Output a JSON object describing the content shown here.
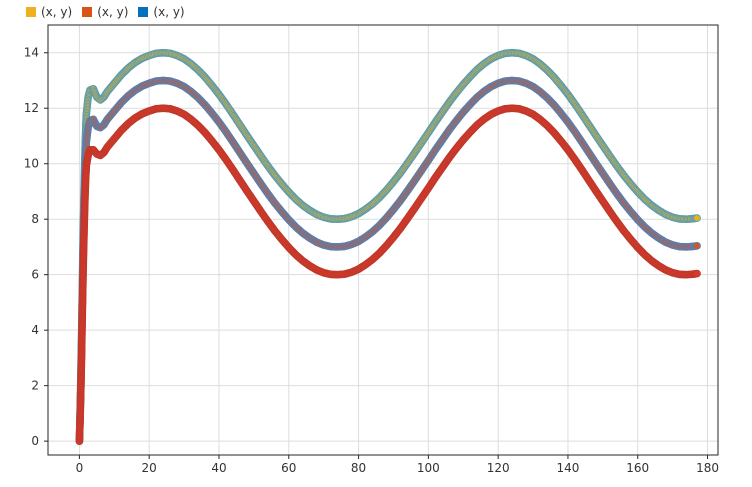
{
  "chart_data": {
    "type": "scatter",
    "xlim": [
      -9,
      183
    ],
    "ylim": [
      -0.5,
      15
    ],
    "xticks": [
      0,
      20,
      40,
      60,
      80,
      100,
      120,
      140,
      160,
      180
    ],
    "yticks": [
      0,
      2,
      4,
      6,
      8,
      10,
      12,
      14
    ],
    "grid": true,
    "legend_position": "top-left",
    "legend": [
      {
        "label": "(x, y)",
        "color": "#EDB120"
      },
      {
        "label": "(x, y)",
        "color": "#D95319"
      },
      {
        "label": "(x, y)",
        "color": "#0072BD"
      }
    ],
    "series": [
      {
        "color": "#EDB120",
        "edge": "#5a9db0",
        "description": "y = 11 + 3*sin(2*pi*(x-0)/100) after rise from origin",
        "points": [
          [
            0.0,
            0.0
          ],
          [
            0.2,
            1.0
          ],
          [
            0.4,
            2.2
          ],
          [
            0.6,
            3.6
          ],
          [
            0.8,
            5.2
          ],
          [
            1.0,
            6.8
          ],
          [
            1.2,
            8.2
          ],
          [
            1.4,
            9.4
          ],
          [
            1.6,
            10.4
          ],
          [
            1.8,
            11.2
          ],
          [
            2.0,
            11.8
          ],
          [
            2.5,
            12.4
          ],
          [
            3.0,
            12.65
          ],
          [
            4.0,
            12.7
          ],
          [
            5.0,
            12.4
          ],
          [
            6.0,
            12.3
          ],
          [
            7.0,
            12.4
          ],
          [
            8.0,
            12.6
          ],
          [
            10,
            12.9
          ],
          [
            12,
            13.2
          ],
          [
            14,
            13.45
          ],
          [
            16,
            13.65
          ],
          [
            18,
            13.8
          ],
          [
            20,
            13.9
          ],
          [
            22,
            13.98
          ],
          [
            24,
            14.0
          ],
          [
            26,
            13.98
          ],
          [
            28,
            13.9
          ],
          [
            30,
            13.78
          ],
          [
            32,
            13.6
          ],
          [
            34,
            13.38
          ],
          [
            36,
            13.12
          ],
          [
            38,
            12.82
          ],
          [
            40,
            12.5
          ],
          [
            42,
            12.15
          ],
          [
            44,
            11.78
          ],
          [
            46,
            11.4
          ],
          [
            48,
            11.02
          ],
          [
            50,
            10.65
          ],
          [
            52,
            10.28
          ],
          [
            54,
            9.92
          ],
          [
            56,
            9.58
          ],
          [
            58,
            9.27
          ],
          [
            60,
            8.98
          ],
          [
            62,
            8.72
          ],
          [
            64,
            8.5
          ],
          [
            66,
            8.32
          ],
          [
            68,
            8.17
          ],
          [
            70,
            8.07
          ],
          [
            72,
            8.01
          ],
          [
            74,
            8.0
          ],
          [
            76,
            8.02
          ],
          [
            78,
            8.09
          ],
          [
            80,
            8.2
          ],
          [
            82,
            8.36
          ],
          [
            84,
            8.55
          ],
          [
            86,
            8.78
          ],
          [
            88,
            9.05
          ],
          [
            90,
            9.35
          ],
          [
            92,
            9.67
          ],
          [
            94,
            10.02
          ],
          [
            96,
            10.38
          ],
          [
            98,
            10.75
          ],
          [
            100,
            11.12
          ],
          [
            102,
            11.5
          ],
          [
            104,
            11.86
          ],
          [
            106,
            12.22
          ],
          [
            108,
            12.55
          ],
          [
            110,
            12.86
          ],
          [
            112,
            13.14
          ],
          [
            114,
            13.4
          ],
          [
            116,
            13.61
          ],
          [
            118,
            13.78
          ],
          [
            120,
            13.9
          ],
          [
            122,
            13.98
          ],
          [
            124,
            14.0
          ],
          [
            126,
            13.98
          ],
          [
            128,
            13.9
          ],
          [
            130,
            13.78
          ],
          [
            132,
            13.6
          ],
          [
            134,
            13.38
          ],
          [
            136,
            13.12
          ],
          [
            138,
            12.82
          ],
          [
            140,
            12.5
          ],
          [
            142,
            12.15
          ],
          [
            144,
            11.78
          ],
          [
            146,
            11.4
          ],
          [
            148,
            11.02
          ],
          [
            150,
            10.65
          ],
          [
            152,
            10.28
          ],
          [
            154,
            9.92
          ],
          [
            156,
            9.58
          ],
          [
            158,
            9.27
          ],
          [
            160,
            8.98
          ],
          [
            162,
            8.72
          ],
          [
            164,
            8.5
          ],
          [
            166,
            8.32
          ],
          [
            168,
            8.17
          ],
          [
            170,
            8.07
          ],
          [
            172,
            8.01
          ],
          [
            174,
            8.0
          ],
          [
            176,
            8.02
          ],
          [
            177,
            8.04
          ]
        ]
      },
      {
        "color": "#D95319",
        "edge": "#5a7fb0",
        "description": "y = 10 + 3*sin(...)",
        "points": [
          [
            0.0,
            0.0
          ],
          [
            0.2,
            0.9
          ],
          [
            0.4,
            2.0
          ],
          [
            0.6,
            3.3
          ],
          [
            0.8,
            4.8
          ],
          [
            1.0,
            6.2
          ],
          [
            1.2,
            7.6
          ],
          [
            1.4,
            8.7
          ],
          [
            1.6,
            9.6
          ],
          [
            1.8,
            10.3
          ],
          [
            2.0,
            10.8
          ],
          [
            2.5,
            11.3
          ],
          [
            3.0,
            11.55
          ],
          [
            4.0,
            11.6
          ],
          [
            5.0,
            11.35
          ],
          [
            6.0,
            11.3
          ],
          [
            7.0,
            11.4
          ],
          [
            8.0,
            11.6
          ],
          [
            10,
            11.9
          ],
          [
            12,
            12.2
          ],
          [
            14,
            12.45
          ],
          [
            16,
            12.65
          ],
          [
            18,
            12.8
          ],
          [
            20,
            12.9
          ],
          [
            22,
            12.98
          ],
          [
            24,
            13.0
          ],
          [
            26,
            12.98
          ],
          [
            28,
            12.9
          ],
          [
            30,
            12.78
          ],
          [
            32,
            12.6
          ],
          [
            34,
            12.38
          ],
          [
            36,
            12.12
          ],
          [
            38,
            11.82
          ],
          [
            40,
            11.5
          ],
          [
            42,
            11.15
          ],
          [
            44,
            10.78
          ],
          [
            46,
            10.4
          ],
          [
            48,
            10.02
          ],
          [
            50,
            9.65
          ],
          [
            52,
            9.28
          ],
          [
            54,
            8.92
          ],
          [
            56,
            8.58
          ],
          [
            58,
            8.27
          ],
          [
            60,
            7.98
          ],
          [
            62,
            7.72
          ],
          [
            64,
            7.5
          ],
          [
            66,
            7.32
          ],
          [
            68,
            7.17
          ],
          [
            70,
            7.07
          ],
          [
            72,
            7.01
          ],
          [
            74,
            7.0
          ],
          [
            76,
            7.02
          ],
          [
            78,
            7.09
          ],
          [
            80,
            7.2
          ],
          [
            82,
            7.36
          ],
          [
            84,
            7.55
          ],
          [
            86,
            7.78
          ],
          [
            88,
            8.05
          ],
          [
            90,
            8.35
          ],
          [
            92,
            8.67
          ],
          [
            94,
            9.02
          ],
          [
            96,
            9.38
          ],
          [
            98,
            9.75
          ],
          [
            100,
            10.12
          ],
          [
            102,
            10.5
          ],
          [
            104,
            10.86
          ],
          [
            106,
            11.22
          ],
          [
            108,
            11.55
          ],
          [
            110,
            11.86
          ],
          [
            112,
            12.14
          ],
          [
            114,
            12.4
          ],
          [
            116,
            12.61
          ],
          [
            118,
            12.78
          ],
          [
            120,
            12.9
          ],
          [
            122,
            12.98
          ],
          [
            124,
            13.0
          ],
          [
            126,
            12.98
          ],
          [
            128,
            12.9
          ],
          [
            130,
            12.78
          ],
          [
            132,
            12.6
          ],
          [
            134,
            12.38
          ],
          [
            136,
            12.12
          ],
          [
            138,
            11.82
          ],
          [
            140,
            11.5
          ],
          [
            142,
            11.15
          ],
          [
            144,
            10.78
          ],
          [
            146,
            10.4
          ],
          [
            148,
            10.02
          ],
          [
            150,
            9.65
          ],
          [
            152,
            9.28
          ],
          [
            154,
            8.92
          ],
          [
            156,
            8.58
          ],
          [
            158,
            8.27
          ],
          [
            160,
            7.98
          ],
          [
            162,
            7.72
          ],
          [
            164,
            7.5
          ],
          [
            166,
            7.32
          ],
          [
            168,
            7.17
          ],
          [
            170,
            7.07
          ],
          [
            172,
            7.01
          ],
          [
            174,
            7.0
          ],
          [
            176,
            7.02
          ],
          [
            177,
            7.04
          ]
        ]
      },
      {
        "color": "#D93A2B",
        "edge": "#c0392b",
        "description": "y = 9 + 3*sin(...)",
        "points": [
          [
            0.0,
            0.0
          ],
          [
            0.2,
            0.8
          ],
          [
            0.4,
            1.8
          ],
          [
            0.6,
            3.0
          ],
          [
            0.8,
            4.4
          ],
          [
            1.0,
            5.7
          ],
          [
            1.2,
            6.9
          ],
          [
            1.4,
            7.9
          ],
          [
            1.6,
            8.8
          ],
          [
            1.8,
            9.5
          ],
          [
            2.0,
            9.95
          ],
          [
            2.5,
            10.3
          ],
          [
            3.0,
            10.5
          ],
          [
            4.0,
            10.5
          ],
          [
            5.0,
            10.35
          ],
          [
            6.0,
            10.3
          ],
          [
            7.0,
            10.4
          ],
          [
            8.0,
            10.6
          ],
          [
            10,
            10.9
          ],
          [
            12,
            11.2
          ],
          [
            14,
            11.45
          ],
          [
            16,
            11.65
          ],
          [
            18,
            11.8
          ],
          [
            20,
            11.9
          ],
          [
            22,
            11.98
          ],
          [
            24,
            12.0
          ],
          [
            26,
            11.98
          ],
          [
            28,
            11.9
          ],
          [
            30,
            11.78
          ],
          [
            32,
            11.6
          ],
          [
            34,
            11.38
          ],
          [
            36,
            11.12
          ],
          [
            38,
            10.82
          ],
          [
            40,
            10.5
          ],
          [
            42,
            10.15
          ],
          [
            44,
            9.78
          ],
          [
            46,
            9.4
          ],
          [
            48,
            9.02
          ],
          [
            50,
            8.65
          ],
          [
            52,
            8.28
          ],
          [
            54,
            7.92
          ],
          [
            56,
            7.58
          ],
          [
            58,
            7.27
          ],
          [
            60,
            6.98
          ],
          [
            62,
            6.72
          ],
          [
            64,
            6.5
          ],
          [
            66,
            6.32
          ],
          [
            68,
            6.17
          ],
          [
            70,
            6.07
          ],
          [
            72,
            6.01
          ],
          [
            74,
            6.0
          ],
          [
            76,
            6.02
          ],
          [
            78,
            6.09
          ],
          [
            80,
            6.2
          ],
          [
            82,
            6.36
          ],
          [
            84,
            6.55
          ],
          [
            86,
            6.78
          ],
          [
            88,
            7.05
          ],
          [
            90,
            7.35
          ],
          [
            92,
            7.67
          ],
          [
            94,
            8.02
          ],
          [
            96,
            8.38
          ],
          [
            98,
            8.75
          ],
          [
            100,
            9.12
          ],
          [
            102,
            9.5
          ],
          [
            104,
            9.86
          ],
          [
            106,
            10.22
          ],
          [
            108,
            10.55
          ],
          [
            110,
            10.86
          ],
          [
            112,
            11.14
          ],
          [
            114,
            11.4
          ],
          [
            116,
            11.61
          ],
          [
            118,
            11.78
          ],
          [
            120,
            11.9
          ],
          [
            122,
            11.98
          ],
          [
            124,
            12.0
          ],
          [
            126,
            11.98
          ],
          [
            128,
            11.9
          ],
          [
            130,
            11.78
          ],
          [
            132,
            11.6
          ],
          [
            134,
            11.38
          ],
          [
            136,
            11.12
          ],
          [
            138,
            10.82
          ],
          [
            140,
            10.5
          ],
          [
            142,
            10.15
          ],
          [
            144,
            9.78
          ],
          [
            146,
            9.4
          ],
          [
            148,
            9.02
          ],
          [
            150,
            8.65
          ],
          [
            152,
            8.28
          ],
          [
            154,
            7.92
          ],
          [
            156,
            7.58
          ],
          [
            158,
            7.27
          ],
          [
            160,
            6.98
          ],
          [
            162,
            6.72
          ],
          [
            164,
            6.5
          ],
          [
            166,
            6.32
          ],
          [
            168,
            6.17
          ],
          [
            170,
            6.07
          ],
          [
            172,
            6.01
          ],
          [
            174,
            6.0
          ],
          [
            176,
            6.02
          ],
          [
            177,
            6.04
          ]
        ]
      }
    ]
  }
}
